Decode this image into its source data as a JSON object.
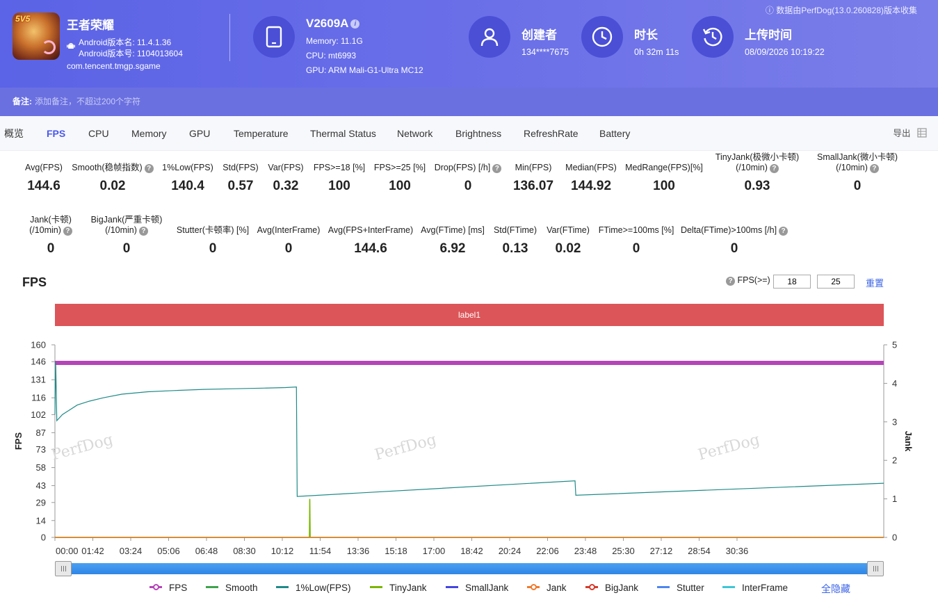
{
  "header": {
    "app_name": "王者荣耀",
    "app_badge": "5V5",
    "android_version_name": "Android版本名: 11.4.1.36",
    "android_version_code": "Android版本号: 1104013604",
    "package": "com.tencent.tmgp.sgame",
    "device_name": "V2609A",
    "memory": "Memory: 11.1G",
    "cpu": "CPU: mt6993",
    "gpu": "GPU: ARM Mali-G1-Ultra MC12",
    "creator_title": "创建者",
    "creator_value": "134****7675",
    "duration_title": "时长",
    "duration_value": "0h 32m 11s",
    "upload_title": "上传时间",
    "upload_value": "08/09/2026 10:19:22",
    "source_note": "ⓘ 数据由PerfDog(13.0.260828)版本收集"
  },
  "remark": {
    "label": "备注:",
    "placeholder": "添加备注，不超过200个字符"
  },
  "tabs": [
    "概览",
    "FPS",
    "CPU",
    "Memory",
    "GPU",
    "Temperature",
    "Thermal Status",
    "Network",
    "Brightness",
    "RefreshRate",
    "Battery"
  ],
  "active_tab": "FPS",
  "export_label": "导出",
  "metrics_row1": [
    {
      "label": "Avg(FPS)",
      "value": "144.6"
    },
    {
      "label": "Smooth(稳帧指数)",
      "value": "0.02",
      "help": true
    },
    {
      "label": "1%Low(FPS)",
      "value": "140.4"
    },
    {
      "label": "Std(FPS)",
      "value": "0.57"
    },
    {
      "label": "Var(FPS)",
      "value": "0.32"
    },
    {
      "label": "FPS>=18 [%]",
      "value": "100"
    },
    {
      "label": "FPS>=25 [%]",
      "value": "100"
    },
    {
      "label": "Drop(FPS) [/h]",
      "value": "0",
      "help": true
    },
    {
      "label": "Min(FPS)",
      "value": "136.07"
    },
    {
      "label": "Median(FPS)",
      "value": "144.92"
    },
    {
      "label": "MedRange(FPS)[%]",
      "value": "100"
    },
    {
      "label": "TinyJank(极微小卡顿)",
      "label2": "(/10min)",
      "value": "0.93",
      "help": true
    },
    {
      "label": "SmallJank(微小卡顿)",
      "label2": "(/10min)",
      "value": "0",
      "help": true
    }
  ],
  "metrics_row2": [
    {
      "label": "Jank(卡顿)",
      "label2": "(/10min)",
      "value": "0",
      "help": true
    },
    {
      "label": "BigJank(严重卡顿)",
      "label2": "(/10min)",
      "value": "0",
      "help": true
    },
    {
      "label": "Stutter(卡顿率) [%]",
      "value": "0"
    },
    {
      "label": "Avg(InterFrame)",
      "value": "0"
    },
    {
      "label": "Avg(FPS+InterFrame)",
      "value": "144.6"
    },
    {
      "label": "Avg(FTime) [ms]",
      "value": "6.92"
    },
    {
      "label": "Std(FTime)",
      "value": "0.13"
    },
    {
      "label": "Var(FTime)",
      "value": "0.02"
    },
    {
      "label": "FTime>=100ms [%]",
      "value": "0"
    },
    {
      "label": "Delta(FTime)>100ms [/h]",
      "value": "0",
      "help": true
    }
  ],
  "fps_section": {
    "heading": "FPS",
    "threshold_label": "FPS(>=)",
    "threshold_1": "18",
    "threshold_2": "25",
    "reset_label": "重置",
    "band_label": "label1",
    "hide_all_label": "全隐藏",
    "watermark": "PerfDog"
  },
  "chart_data": {
    "type": "line",
    "xlabel": "",
    "ylabel": "FPS",
    "y2label": "Jank",
    "ylim": [
      0,
      160
    ],
    "y2lim": [
      0,
      5
    ],
    "yticks": [
      "0",
      "14",
      "29",
      "43",
      "58",
      "73",
      "87",
      "102",
      "116",
      "131",
      "146",
      "160"
    ],
    "y2ticks": [
      "0",
      "1",
      "2",
      "3",
      "4",
      "5"
    ],
    "xticks": [
      "00:00",
      "01:42",
      "03:24",
      "05:06",
      "06:48",
      "08:30",
      "10:12",
      "11:54",
      "13:36",
      "15:18",
      "17:00",
      "18:42",
      "20:24",
      "22:06",
      "23:48",
      "25:30",
      "27:12",
      "28:54",
      "30:36"
    ],
    "x_unit": "seconds",
    "x_max": 2231,
    "series": [
      {
        "name": "FPS",
        "color": "#b445b8",
        "axis": "left",
        "x": [
          0,
          2231
        ],
        "values": [
          145,
          145
        ]
      },
      {
        "name": "Smooth",
        "color": "#3fa34d",
        "axis": "left",
        "x": [
          0,
          2231
        ],
        "values": [
          0,
          0
        ]
      },
      {
        "name": "1%Low(FPS)",
        "color": "#1f8a88",
        "axis": "left",
        "x": [
          0,
          2,
          5,
          20,
          40,
          60,
          90,
          130,
          180,
          250,
          320,
          400,
          480,
          560,
          620,
          650,
          652,
          1400,
          1402,
          2231
        ],
        "values": [
          102,
          146,
          97,
          102,
          106,
          110,
          113,
          116,
          119,
          121,
          122,
          123,
          123.5,
          124,
          124.5,
          125,
          34,
          47,
          35,
          45
        ]
      },
      {
        "name": "TinyJank",
        "color": "#7bb500",
        "axis": "right",
        "x": [
          0,
          685,
          686,
          687,
          2231
        ],
        "values": [
          0,
          0,
          1,
          0,
          0
        ]
      },
      {
        "name": "SmallJank",
        "color": "#4545e0",
        "axis": "right",
        "x": [],
        "values": []
      },
      {
        "name": "Jank",
        "color": "#f07a2e",
        "axis": "right",
        "x": [
          0,
          2231
        ],
        "values": [
          0,
          0
        ]
      },
      {
        "name": "BigJank",
        "color": "#d43a2b",
        "axis": "right",
        "x": [],
        "values": []
      },
      {
        "name": "Stutter",
        "color": "#4d86ef",
        "axis": "right",
        "x": [],
        "values": []
      },
      {
        "name": "InterFrame",
        "color": "#3fc6d6",
        "axis": "left",
        "x": [],
        "values": []
      }
    ]
  }
}
